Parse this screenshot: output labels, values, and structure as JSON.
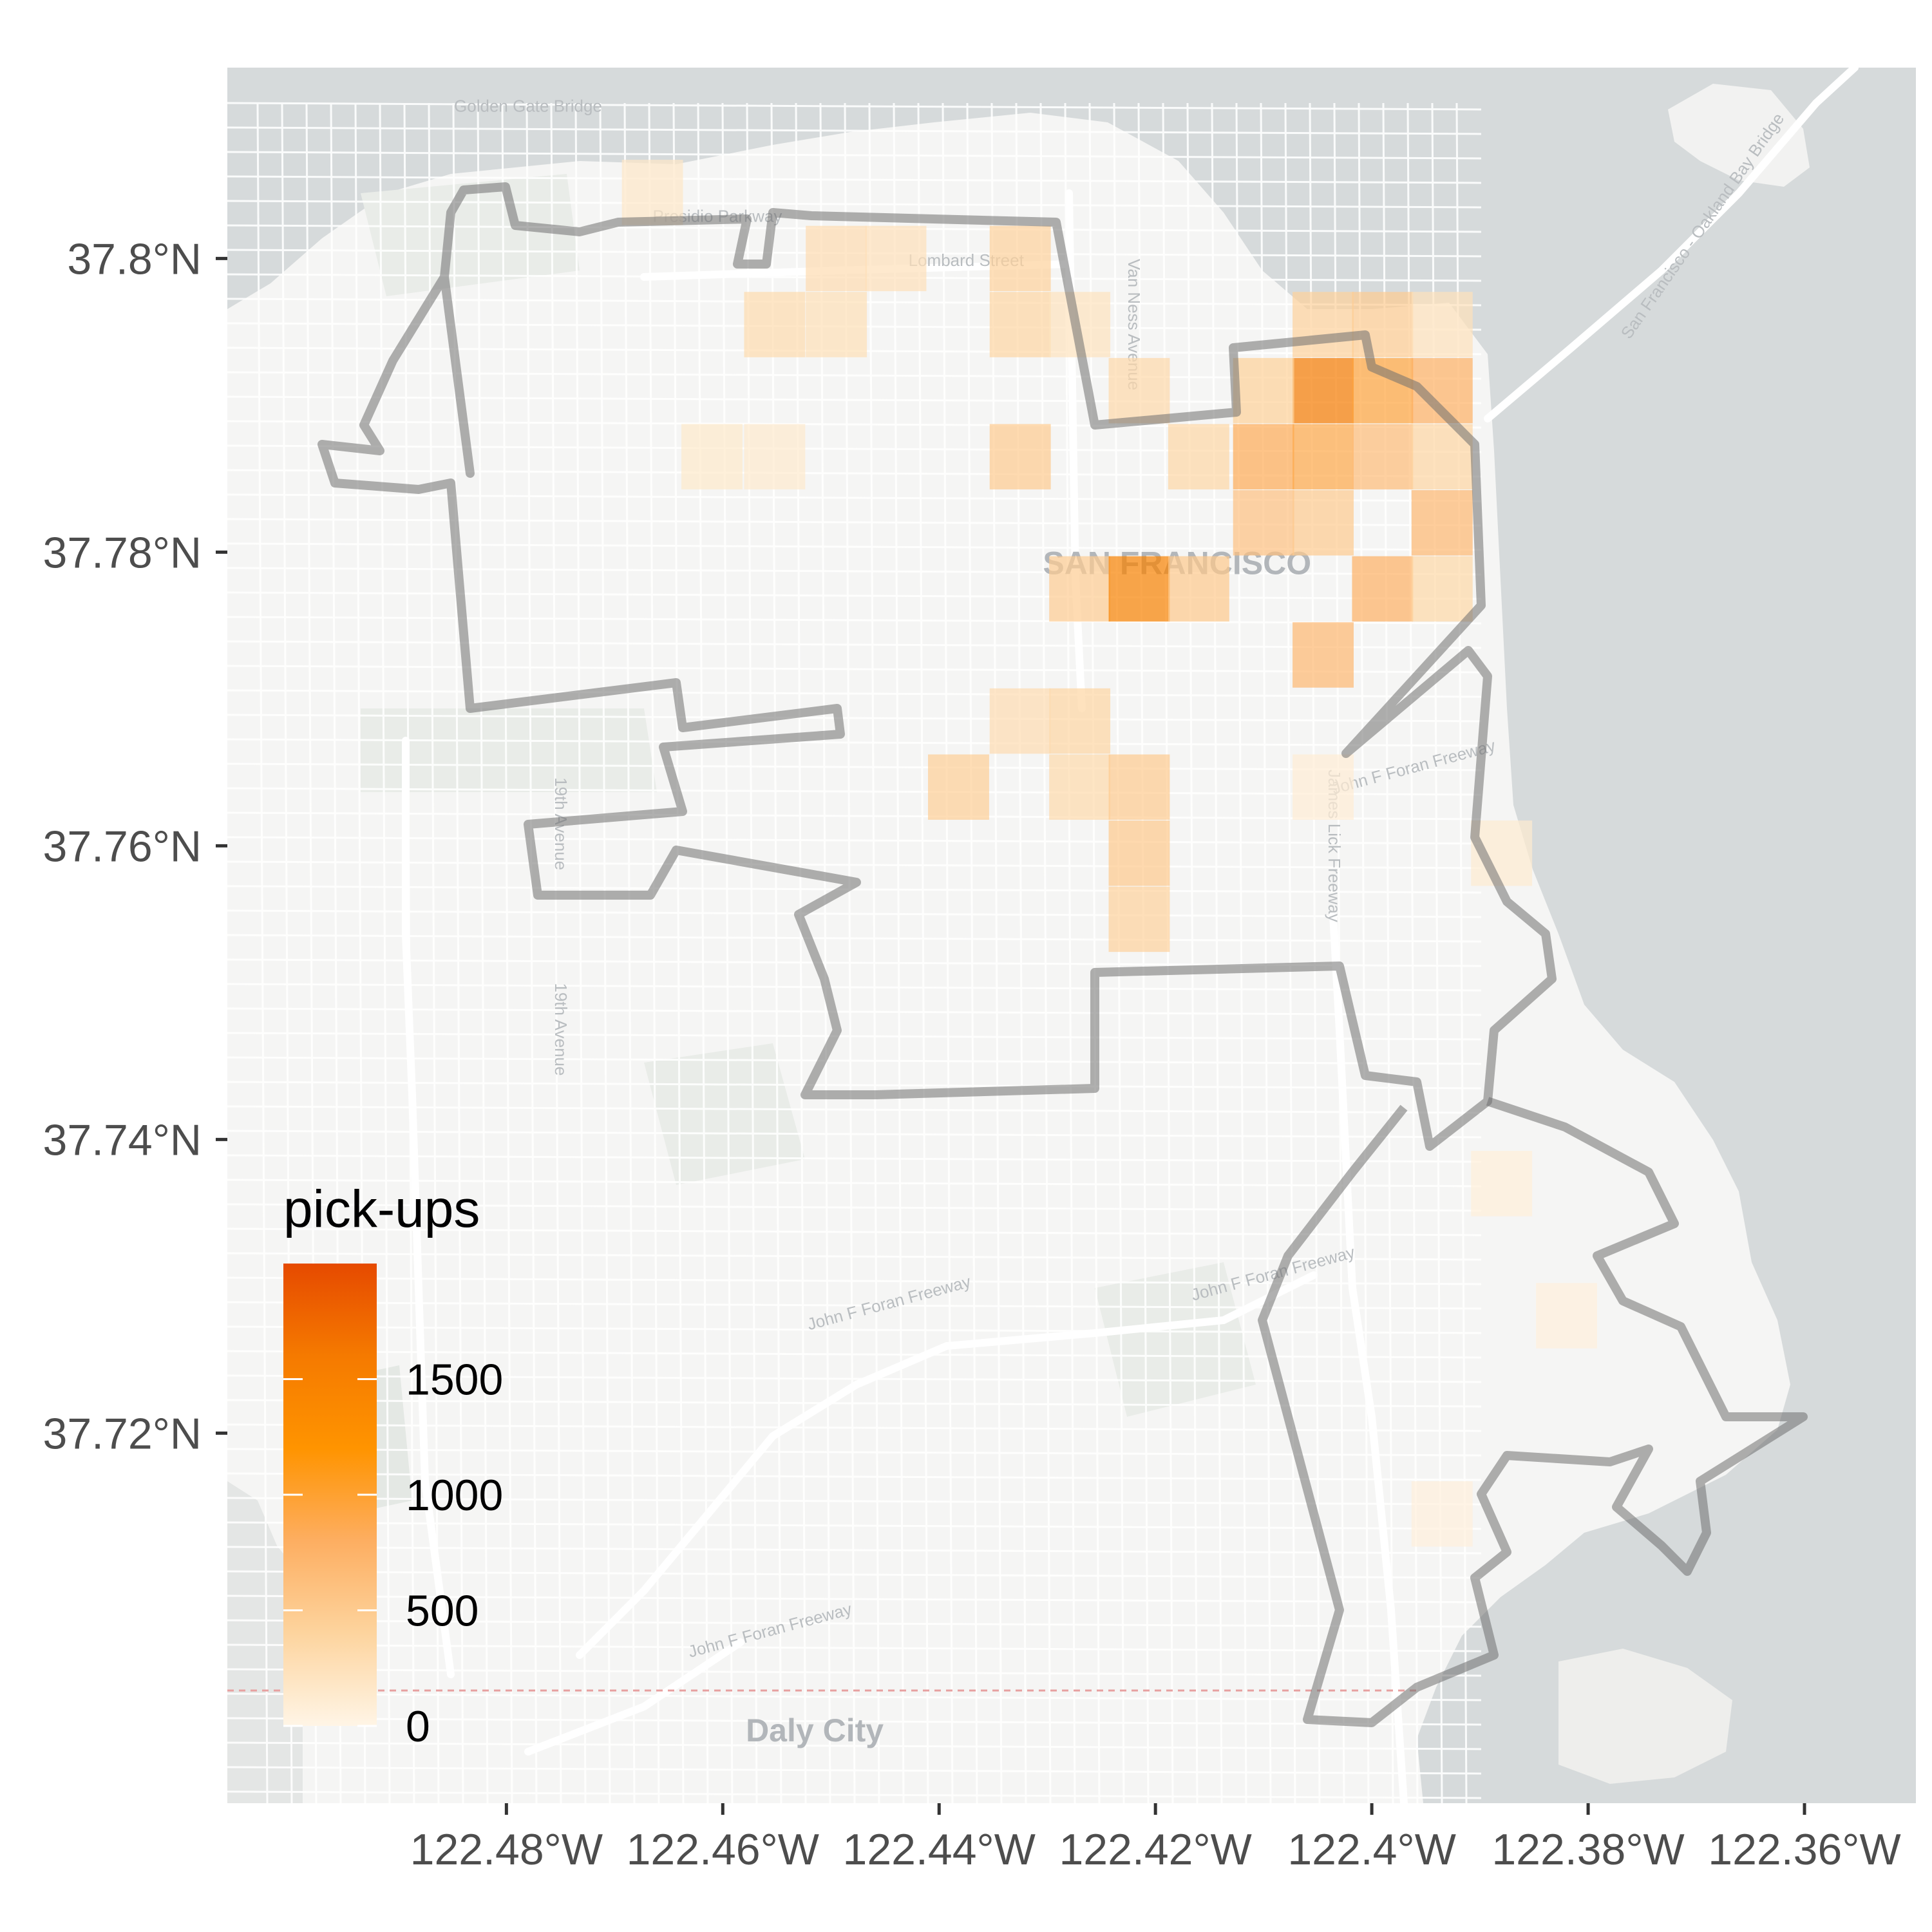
{
  "map": {
    "extent": {
      "lon": [
        -122.5058,
        -122.3497
      ],
      "lat": [
        37.6948,
        37.813
      ]
    },
    "x_ticks": [
      {
        "lon": -122.48,
        "label": "122.48°W"
      },
      {
        "lon": -122.46,
        "label": "122.46°W"
      },
      {
        "lon": -122.44,
        "label": "122.44°W"
      },
      {
        "lon": -122.42,
        "label": "122.42°W"
      },
      {
        "lon": -122.4,
        "label": "122.4°W"
      },
      {
        "lon": -122.38,
        "label": "122.38°W"
      },
      {
        "lon": -122.36,
        "label": "122.36°W"
      }
    ],
    "y_ticks": [
      {
        "lat": 37.8,
        "label": "37.8°N"
      },
      {
        "lat": 37.78,
        "label": "37.78°N"
      },
      {
        "lat": 37.76,
        "label": "37.76°N"
      },
      {
        "lat": 37.74,
        "label": "37.74°N"
      },
      {
        "lat": 37.72,
        "label": "37.72°N"
      }
    ],
    "basemap_labels": [
      {
        "text": "SAN FRANCISCO",
        "lon": -122.418,
        "lat": 37.7785
      },
      {
        "text": "Daly City",
        "lon": -122.4515,
        "lat": 37.699
      },
      {
        "text": "Lombard Street",
        "lon": -122.4375,
        "lat": 37.7995
      },
      {
        "text": "Presidio Parkway",
        "lon": -122.4605,
        "lat": 37.8025
      },
      {
        "text": "Van Ness Avenue",
        "lon": -122.4225,
        "lat": 37.7955
      },
      {
        "text": "John F Foran Freeway",
        "lon": -122.409,
        "lat": 37.7305
      },
      {
        "text": "John F Foran Freeway",
        "lon": -122.4445,
        "lat": 37.7285
      },
      {
        "text": "John F Foran Freeway",
        "lon": -122.4555,
        "lat": 37.7062
      },
      {
        "text": "John F Foran Freeway",
        "lon": -122.396,
        "lat": 37.765
      },
      {
        "text": "James Lick Freeway",
        "lon": -122.404,
        "lat": 37.76
      },
      {
        "text": "19th Avenue",
        "lon": -122.4755,
        "lat": 37.7615
      },
      {
        "text": "19th Avenue",
        "lon": -122.4755,
        "lat": 37.7475
      },
      {
        "text": "San Francisco - Oakland Bay Bridge",
        "lon": -122.369,
        "lat": 37.802
      },
      {
        "text": "Golden Gate Bridge",
        "lon": -122.478,
        "lat": 37.81
      }
    ],
    "colors": {
      "water": "#d6dadb",
      "land": "#f5f5f4",
      "park": "#e9ece8",
      "road": "#ffffff",
      "district_outline": "#6f6f6f",
      "panel_background": "#ebebeb"
    },
    "color_scale": [
      "#fff5e6",
      "#fdd49e",
      "#fdae61",
      "#ff9400",
      "#f57a00",
      "#e64a00"
    ]
  },
  "legend": {
    "title": "pick-ups",
    "max_value": 2000,
    "breaks": [
      {
        "value": 0,
        "label": "0"
      },
      {
        "value": 500,
        "label": "500"
      },
      {
        "value": 1000,
        "label": "1000"
      },
      {
        "value": 1500,
        "label": "1500"
      }
    ]
  },
  "chart_data": {
    "type": "heatmap",
    "title": "",
    "xlabel": "",
    "ylabel": "",
    "xlim": [
      -122.5058,
      -122.3497
    ],
    "ylim": [
      37.6948,
      37.813
    ],
    "cell_size_deg": {
      "lon": 0.00565,
      "lat": 0.00445
    },
    "cell_size_note_units": "degrees",
    "value_label": "pick-ups",
    "cells": [
      {
        "lon": -122.4665,
        "lat": 37.8045,
        "value": 170
      },
      {
        "lon": -122.4495,
        "lat": 37.8,
        "value": 300
      },
      {
        "lon": -122.444,
        "lat": 37.8,
        "value": 250
      },
      {
        "lon": -122.4325,
        "lat": 37.8,
        "value": 420
      },
      {
        "lon": -122.4325,
        "lat": 37.7955,
        "value": 380
      },
      {
        "lon": -122.4552,
        "lat": 37.7955,
        "value": 310
      },
      {
        "lon": -122.4495,
        "lat": 37.7955,
        "value": 260
      },
      {
        "lon": -122.427,
        "lat": 37.7955,
        "value": 220
      },
      {
        "lon": -122.4045,
        "lat": 37.7955,
        "value": 420
      },
      {
        "lon": -122.399,
        "lat": 37.7955,
        "value": 480
      },
      {
        "lon": -122.3935,
        "lat": 37.7955,
        "value": 240
      },
      {
        "lon": -122.4045,
        "lat": 37.791,
        "value": 1600
      },
      {
        "lon": -122.399,
        "lat": 37.791,
        "value": 950
      },
      {
        "lon": -122.3935,
        "lat": 37.791,
        "value": 780
      },
      {
        "lon": -122.41,
        "lat": 37.791,
        "value": 430
      },
      {
        "lon": -122.4215,
        "lat": 37.791,
        "value": 340
      },
      {
        "lon": -122.41,
        "lat": 37.7865,
        "value": 850
      },
      {
        "lon": -122.4045,
        "lat": 37.7865,
        "value": 900
      },
      {
        "lon": -122.399,
        "lat": 37.7865,
        "value": 650
      },
      {
        "lon": -122.3935,
        "lat": 37.7865,
        "value": 380
      },
      {
        "lon": -122.4325,
        "lat": 37.7865,
        "value": 500
      },
      {
        "lon": -122.416,
        "lat": 37.7865,
        "value": 360
      },
      {
        "lon": -122.41,
        "lat": 37.782,
        "value": 600
      },
      {
        "lon": -122.4045,
        "lat": 37.782,
        "value": 500
      },
      {
        "lon": -122.3935,
        "lat": 37.782,
        "value": 700
      },
      {
        "lon": -122.427,
        "lat": 37.7775,
        "value": 480
      },
      {
        "lon": -122.4215,
        "lat": 37.7775,
        "value": 1500
      },
      {
        "lon": -122.416,
        "lat": 37.7775,
        "value": 520
      },
      {
        "lon": -122.399,
        "lat": 37.7775,
        "value": 780
      },
      {
        "lon": -122.3935,
        "lat": 37.7775,
        "value": 350
      },
      {
        "lon": -122.4045,
        "lat": 37.773,
        "value": 700
      },
      {
        "lon": -122.427,
        "lat": 37.7685,
        "value": 380
      },
      {
        "lon": -122.4325,
        "lat": 37.7685,
        "value": 300
      },
      {
        "lon": -122.4382,
        "lat": 37.764,
        "value": 450
      },
      {
        "lon": -122.427,
        "lat": 37.764,
        "value": 330
      },
      {
        "lon": -122.4215,
        "lat": 37.764,
        "value": 500
      },
      {
        "lon": -122.4215,
        "lat": 37.7595,
        "value": 520
      },
      {
        "lon": -122.4215,
        "lat": 37.755,
        "value": 420
      },
      {
        "lon": -122.4552,
        "lat": 37.7865,
        "value": 140
      },
      {
        "lon": -122.461,
        "lat": 37.7865,
        "value": 150
      },
      {
        "lon": -122.4045,
        "lat": 37.764,
        "value": 100
      },
      {
        "lon": -122.388,
        "lat": 37.7595,
        "value": 120
      },
      {
        "lon": -122.388,
        "lat": 37.737,
        "value": 70
      },
      {
        "lon": -122.382,
        "lat": 37.728,
        "value": 60
      },
      {
        "lon": -122.3935,
        "lat": 37.7145,
        "value": 55
      }
    ]
  }
}
